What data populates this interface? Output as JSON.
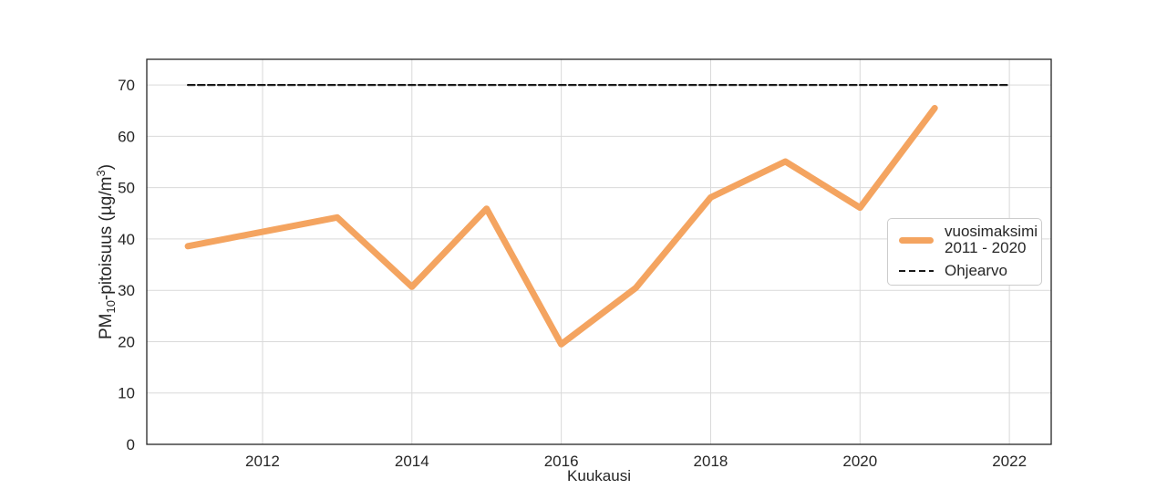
{
  "figure": {
    "background": "#ffffff",
    "xlabel": "Kuukausi",
    "ylabel_plain": "PM10-pitoisuus (µg/m3)",
    "ylabel_segments": [
      {
        "text": "PM",
        "style": "normal"
      },
      {
        "text": "10",
        "style": "sub"
      },
      {
        "text": "-pitoisuus (µg/m",
        "style": "normal"
      },
      {
        "text": "3",
        "style": "sup"
      },
      {
        "text": ")",
        "style": "normal"
      }
    ]
  },
  "legend": {
    "series1_label_line1": "vuosimaksimi",
    "series1_label_line2": "2011 - 2020",
    "series2_label": "Ohjearvo"
  },
  "chart_data": {
    "type": "line",
    "title": "",
    "xlabel": "Kuukausi",
    "ylabel": "PM10-pitoisuus (µg/m3)",
    "x": [
      2011,
      2012,
      2013,
      2014,
      2015,
      2016,
      2017,
      2018,
      2019,
      2020,
      2021
    ],
    "series": [
      {
        "name": "vuosimaksimi 2011 - 2020",
        "style": "solid",
        "color": "#f4a460",
        "line_width": 7,
        "values": [
          38.6,
          41.4,
          44.2,
          30.7,
          45.9,
          19.5,
          30.5,
          48.1,
          55.1,
          46.1,
          65.5
        ]
      },
      {
        "name": "Ohjearvo",
        "style": "dashed",
        "color": "#1a1a1a",
        "line_width": 2.2,
        "x": [
          2011,
          2022
        ],
        "values": [
          70,
          70
        ]
      }
    ],
    "xticks": [
      2012,
      2014,
      2016,
      2018,
      2020,
      2022
    ],
    "yticks": [
      0,
      10,
      20,
      30,
      40,
      50,
      60,
      70
    ],
    "xlim": [
      2010.45,
      2022.56
    ],
    "ylim": [
      0,
      75
    ],
    "grid": true,
    "grid_color": "#d9d9d9",
    "spine_color": "#262626",
    "tick_color": "#262626",
    "legend_position": "center right"
  }
}
